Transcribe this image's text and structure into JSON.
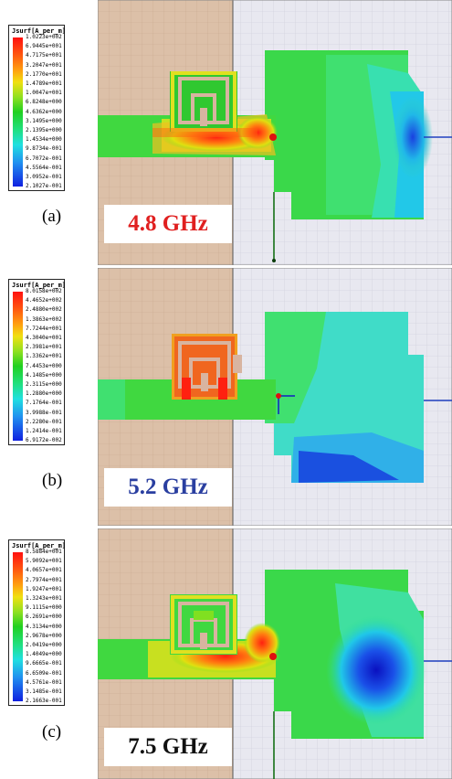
{
  "colors": {
    "substrate": "#dcc0a8",
    "grid_bg": "#e8e8f0",
    "frequency_a": "#e02020",
    "frequency_b": "#2a3fa0",
    "frequency_c": "#111111"
  },
  "panels": [
    {
      "label": "(a)",
      "frequency": "4.8 GHz",
      "legend": {
        "title": "Jsurf[A_per_m]",
        "values": [
          "1.0223e+002",
          "6.9445e+001",
          "4.7175e+001",
          "3.2047e+001",
          "2.1770e+001",
          "1.4789e+001",
          "1.0047e+001",
          "6.8248e+000",
          "4.6362e+000",
          "3.1495e+000",
          "2.1395e+000",
          "1.4534e+000",
          "9.8734e-001",
          "6.7072e-001",
          "4.5564e-001",
          "3.0952e-001",
          "2.1027e-001"
        ]
      }
    },
    {
      "label": "(b)",
      "frequency": "5.2 GHz",
      "legend": {
        "title": "Jsurf[A_per_m]",
        "values": [
          "8.0158e+002",
          "4.4652e+002",
          "2.4880e+002",
          "1.3863e+002",
          "7.7244e+001",
          "4.3040e+001",
          "2.3981e+001",
          "1.3362e+001",
          "7.4453e+000",
          "4.1485e+000",
          "2.3115e+000",
          "1.2880e+000",
          "7.1764e-001",
          "3.9988e-001",
          "2.2280e-001",
          "1.2414e-001",
          "6.9172e-002"
        ]
      }
    },
    {
      "label": "(c)",
      "frequency": "7.5 GHz",
      "legend": {
        "title": "Jsurf[A_per_m]",
        "values": [
          "8.5884e+001",
          "5.9092e+001",
          "4.0657e+001",
          "2.7974e+001",
          "1.9247e+001",
          "1.3243e+001",
          "9.1115e+000",
          "6.2691e+000",
          "4.3134e+000",
          "2.9678e+000",
          "2.0419e+000",
          "1.4049e+000",
          "9.6665e-001",
          "6.6509e-001",
          "4.5761e-001",
          "3.1485e-001",
          "2.1663e-001"
        ]
      }
    }
  ]
}
